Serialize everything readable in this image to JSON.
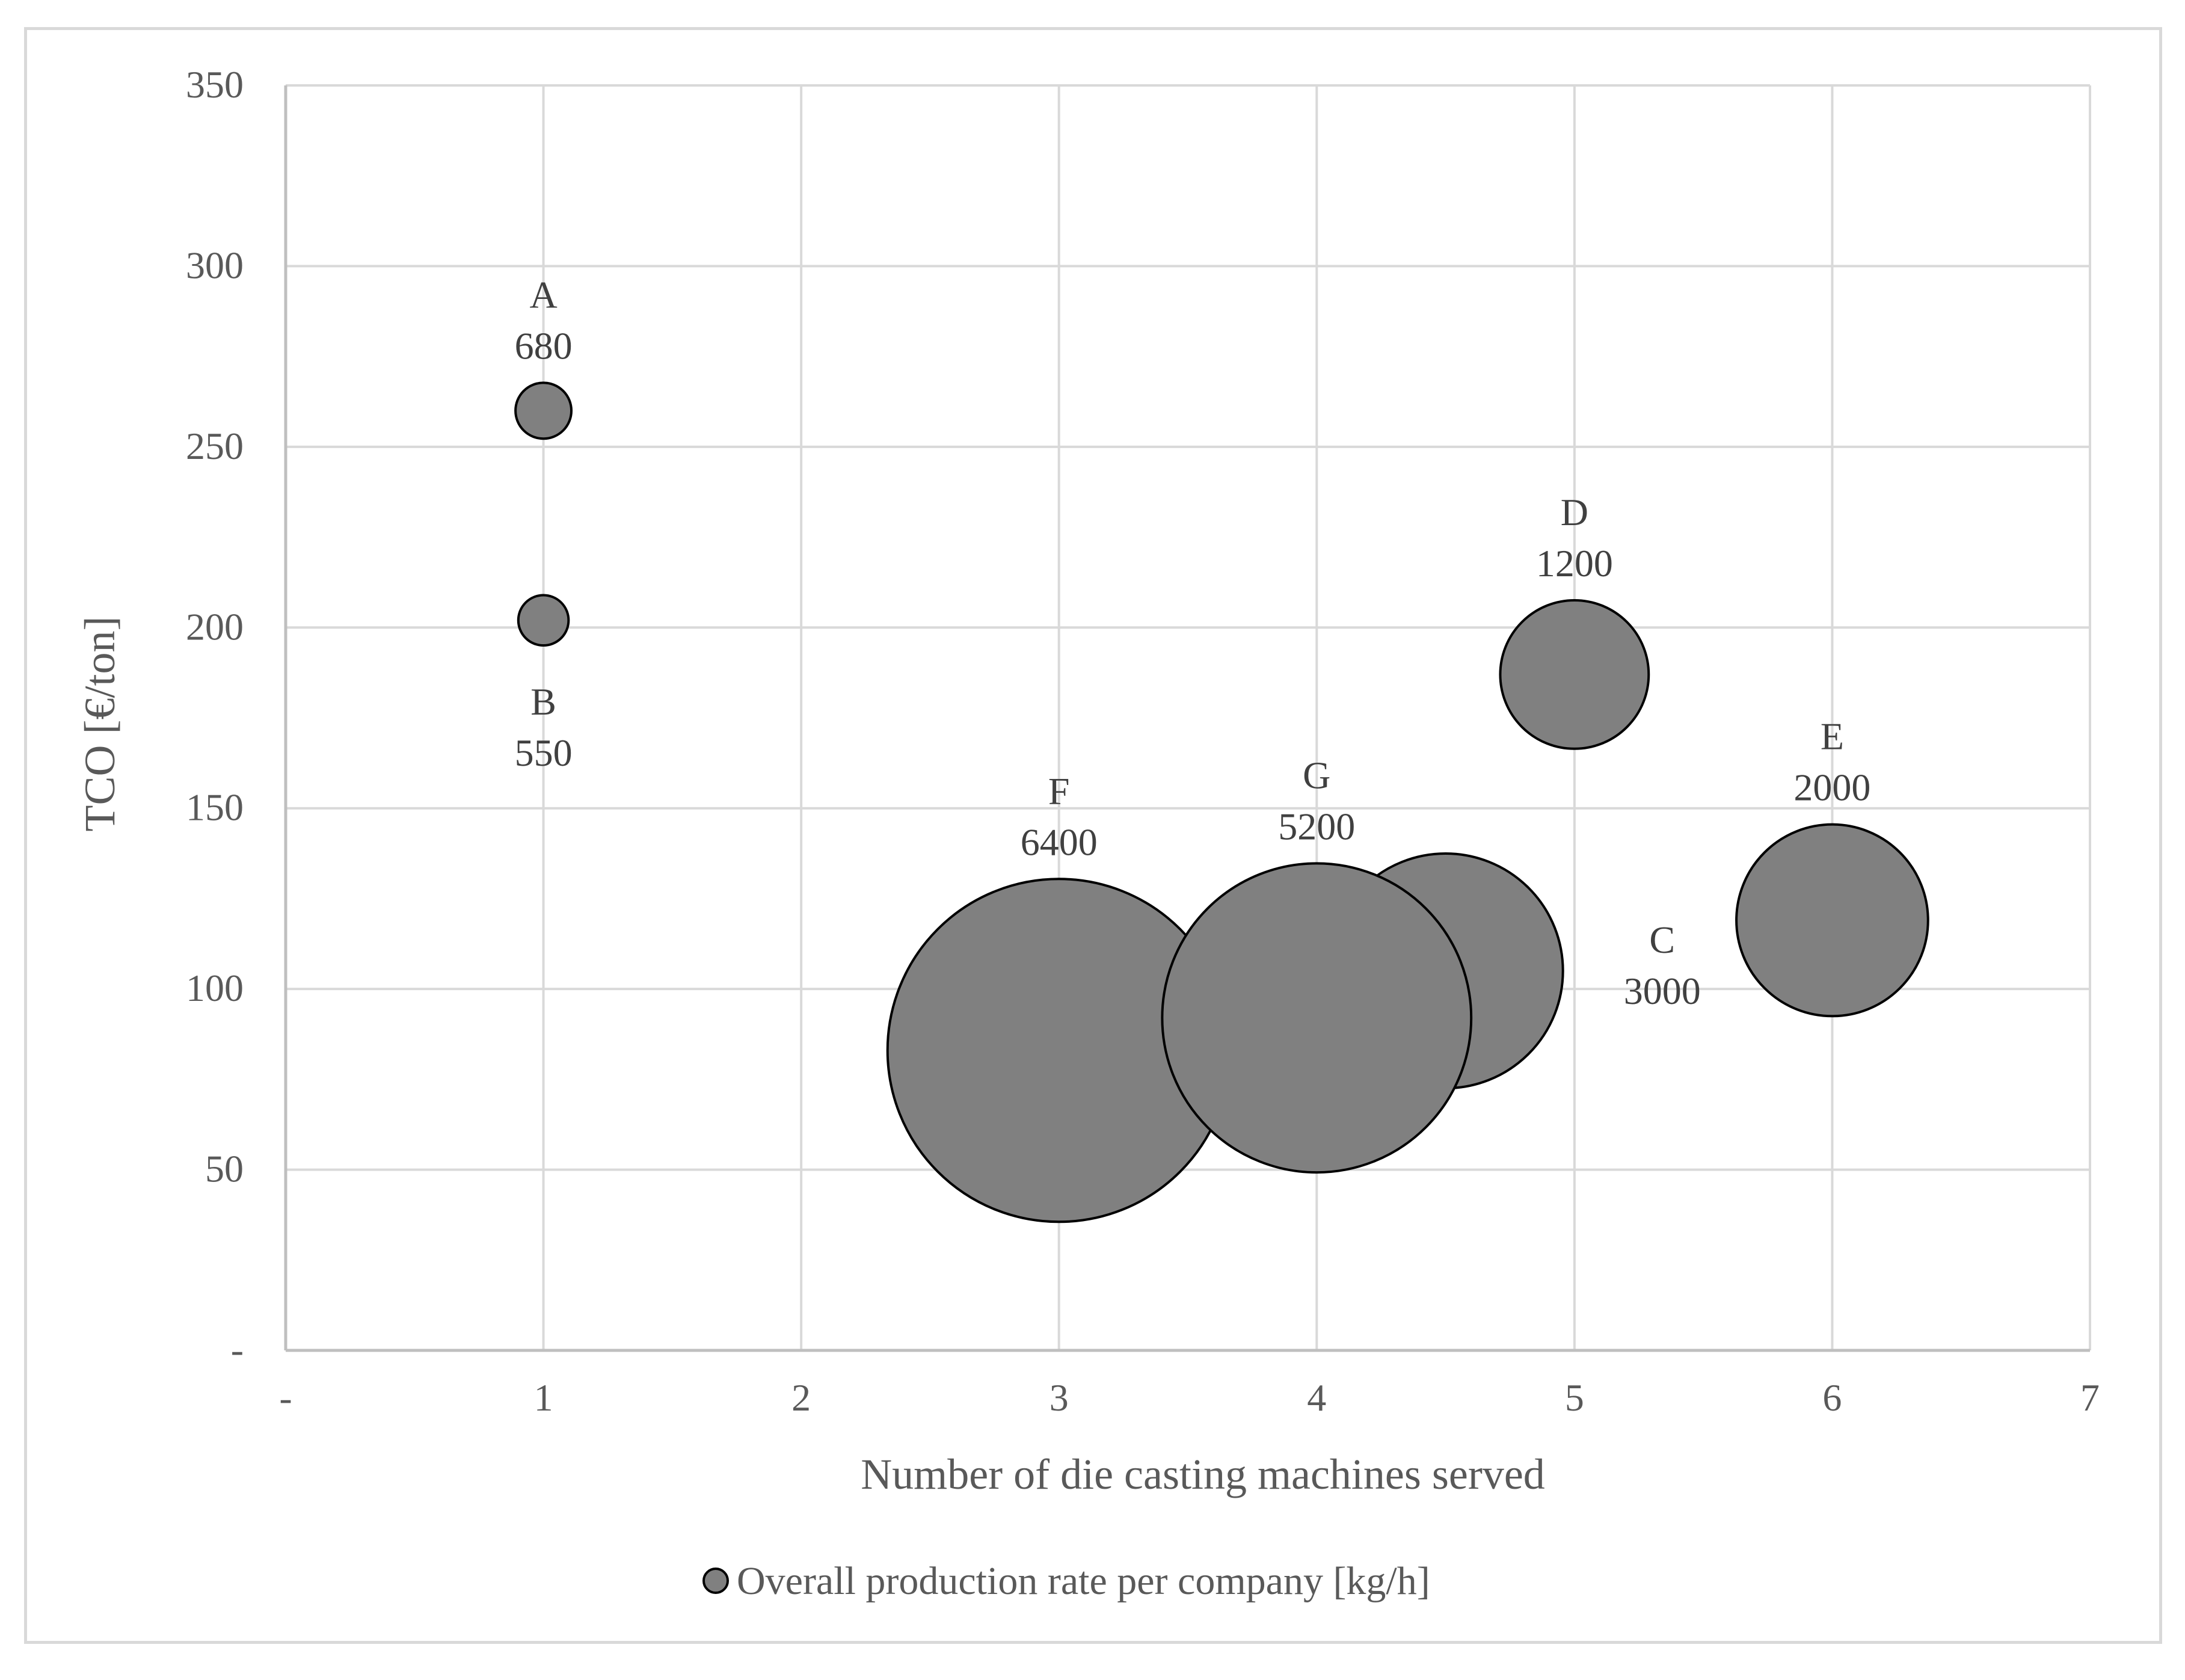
{
  "chart_data": {
    "type": "bubble",
    "title": "",
    "xlabel": "Number of die casting machines served",
    "ylabel": "TCO [€/ton]",
    "xlim": [
      0,
      7
    ],
    "ylim": [
      0,
      350
    ],
    "x_ticks": [
      {
        "value": 0,
        "label": "-"
      },
      {
        "value": 1,
        "label": "1"
      },
      {
        "value": 2,
        "label": "2"
      },
      {
        "value": 3,
        "label": "3"
      },
      {
        "value": 4,
        "label": "4"
      },
      {
        "value": 5,
        "label": "5"
      },
      {
        "value": 6,
        "label": "6"
      },
      {
        "value": 7,
        "label": "7"
      }
    ],
    "y_ticks": [
      {
        "value": 0,
        "label": "-"
      },
      {
        "value": 50,
        "label": "50"
      },
      {
        "value": 100,
        "label": "100"
      },
      {
        "value": 150,
        "label": "150"
      },
      {
        "value": 200,
        "label": "200"
      },
      {
        "value": 250,
        "label": "250"
      },
      {
        "value": 300,
        "label": "300"
      },
      {
        "value": 350,
        "label": "350"
      }
    ],
    "grid": true,
    "legend_position": "bottom",
    "series": [
      {
        "name": "Overall production rate per company [kg/h]",
        "color": "#808080",
        "points": [
          {
            "id": "A",
            "x": 1,
            "y": 260,
            "size": 680,
            "label_position": "above"
          },
          {
            "id": "B",
            "x": 1,
            "y": 202,
            "size": 550,
            "label_position": "below"
          },
          {
            "id": "C",
            "x": 4.5,
            "y": 105,
            "size": 3000,
            "label_position": "right"
          },
          {
            "id": "D",
            "x": 5,
            "y": 187,
            "size": 1200,
            "label_position": "above"
          },
          {
            "id": "E",
            "x": 6,
            "y": 119,
            "size": 2000,
            "label_position": "above"
          },
          {
            "id": "F",
            "x": 3,
            "y": 83,
            "size": 6400,
            "label_position": "above"
          },
          {
            "id": "G",
            "x": 4,
            "y": 92,
            "size": 5200,
            "label_position": "above"
          }
        ]
      }
    ]
  }
}
